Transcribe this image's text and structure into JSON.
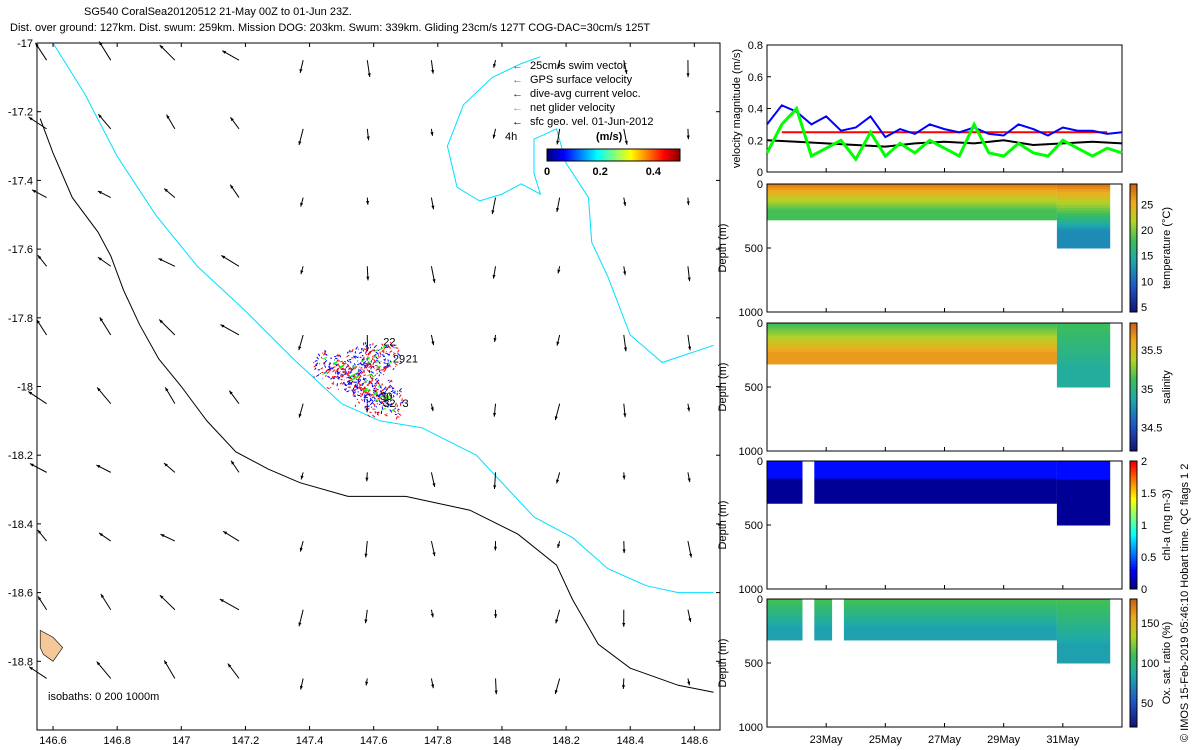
{
  "header": {
    "title": "SG540 CoralSea20120512 21-May 00Z to 01-Jun 23Z.",
    "subtitle": "Dist. over ground: 127km. Dist. swum: 259km. Mission DOG: 203km. Swum: 339km. Gliding 23cm/s 127T COG-DAC=30cm/s 125T"
  },
  "credit": "© IMOS 15-Feb-2019 05:46:10 Hobart time. QC flags 1  2",
  "colors": {
    "swim": "#ff0000",
    "gps": "#ff00ff",
    "dac": "#0000ff",
    "net": "#00ff00",
    "sfc": "#000000",
    "coast": "#000000",
    "iso200": "#000000",
    "iso1000": "#00e0ff",
    "land": "#f5c89a"
  },
  "chart_data": [
    {
      "type": "map",
      "xlim": [
        146.55,
        148.68
      ],
      "ylim": [
        -19.0,
        -17.0
      ],
      "xticks": [
        "146.6",
        "146.8",
        "147",
        "147.2",
        "147.4",
        "147.6",
        "147.8",
        "148",
        "148.2",
        "148.4",
        "148.6"
      ],
      "xtick_values": [
        146.6,
        146.8,
        147.0,
        147.2,
        147.4,
        147.6,
        147.8,
        148.0,
        148.2,
        148.4,
        148.6
      ],
      "yticks": [
        "-17",
        "-17.2",
        "-17.4",
        "-17.6",
        "-17.8",
        "-18",
        "-18.2",
        "-18.4",
        "-18.6",
        "-18.8"
      ],
      "ytick_values": [
        -17.0,
        -17.2,
        -17.4,
        -17.6,
        -17.8,
        -18.0,
        -18.2,
        -18.4,
        -18.6,
        -18.8
      ],
      "legend": [
        {
          "label": "25cm/s swim vector",
          "color": "#ff0000",
          "arrow": "←"
        },
        {
          "label": "GPS surface velocity",
          "color": "#ff00ff",
          "arrow": "←"
        },
        {
          "label": "dive-avg current veloc.",
          "color": "#0000ff",
          "arrow": "←"
        },
        {
          "label": "net glider velocity",
          "color": "#00ff00",
          "arrow": "←"
        },
        {
          "label": "sfc geo. vel. 01-Jun-2012",
          "color": "#000000",
          "arrow": "←"
        }
      ],
      "legend_time": "4h",
      "colorbar": {
        "label": "(m/s)",
        "ticks": [
          "0",
          "0.2",
          "0.4"
        ],
        "tick_values": [
          0,
          0.2,
          0.4
        ],
        "range": [
          0,
          0.5
        ]
      },
      "isobath_note": "isobaths: 0   200  1000m",
      "day_labels": [
        {
          "text": "22",
          "lon": 147.63,
          "lat": -17.88
        },
        {
          "text": "29",
          "lon": 147.66,
          "lat": -17.93
        },
        {
          "text": "21",
          "lon": 147.7,
          "lat": -17.93
        },
        {
          "text": "30",
          "lon": 147.62,
          "lat": -18.04
        },
        {
          "text": "32",
          "lon": 147.63,
          "lat": -18.06
        },
        {
          "text": "3",
          "lon": 147.69,
          "lat": -18.06
        }
      ],
      "coastline_200m": [
        [
          146.56,
          -17.22
        ],
        [
          146.6,
          -17.32
        ],
        [
          146.66,
          -17.45
        ],
        [
          146.74,
          -17.55
        ],
        [
          146.78,
          -17.62
        ],
        [
          146.82,
          -17.72
        ],
        [
          146.87,
          -17.82
        ],
        [
          146.93,
          -17.92
        ],
        [
          147.0,
          -18.0
        ],
        [
          147.08,
          -18.1
        ],
        [
          147.17,
          -18.19
        ],
        [
          147.27,
          -18.24
        ],
        [
          147.37,
          -18.28
        ],
        [
          147.52,
          -18.32
        ],
        [
          147.7,
          -18.32
        ],
        [
          147.9,
          -18.36
        ],
        [
          148.05,
          -18.43
        ],
        [
          148.17,
          -18.52
        ],
        [
          148.22,
          -18.62
        ],
        [
          148.3,
          -18.75
        ],
        [
          148.4,
          -18.82
        ],
        [
          148.55,
          -18.87
        ],
        [
          148.66,
          -18.89
        ]
      ],
      "isobath_1000m": [
        [
          146.6,
          -17.0
        ],
        [
          146.7,
          -17.15
        ],
        [
          146.8,
          -17.33
        ],
        [
          146.92,
          -17.5
        ],
        [
          147.05,
          -17.65
        ],
        [
          147.2,
          -17.78
        ],
        [
          147.35,
          -17.92
        ],
        [
          147.5,
          -18.05
        ],
        [
          147.62,
          -18.1
        ],
        [
          147.75,
          -18.12
        ],
        [
          147.92,
          -18.2
        ],
        [
          148.02,
          -18.3
        ],
        [
          148.1,
          -18.38
        ],
        [
          148.22,
          -18.44
        ],
        [
          148.33,
          -18.53
        ],
        [
          148.45,
          -18.58
        ],
        [
          148.55,
          -18.6
        ],
        [
          148.66,
          -18.6
        ]
      ],
      "isobath_cyan_upper": [
        [
          148.66,
          -17.88
        ],
        [
          148.5,
          -17.93
        ],
        [
          148.4,
          -17.85
        ],
        [
          148.33,
          -17.68
        ],
        [
          148.28,
          -17.58
        ],
        [
          148.27,
          -17.45
        ],
        [
          148.2,
          -17.35
        ],
        [
          148.17,
          -17.25
        ],
        [
          148.1,
          -17.28
        ],
        [
          148.1,
          -17.38
        ],
        [
          148.12,
          -17.44
        ],
        [
          148.06,
          -17.41
        ],
        [
          148.0,
          -17.44
        ],
        [
          147.93,
          -17.46
        ],
        [
          147.86,
          -17.42
        ],
        [
          147.83,
          -17.3
        ],
        [
          147.88,
          -17.18
        ],
        [
          147.97,
          -17.1
        ],
        [
          148.06,
          -17.06
        ],
        [
          148.12,
          -17.04
        ]
      ],
      "sfc_vectors_note": "Gridded surface geostrophic velocity arrows drawn across map"
    },
    {
      "type": "line",
      "ylabel": "velocity magnitude (m/s)",
      "ylim": [
        0,
        0.8
      ],
      "yticks": [
        "0",
        "0.2",
        "0.4",
        "0.6",
        "0.8"
      ],
      "ytick_values": [
        0,
        0.2,
        0.4,
        0.6,
        0.8
      ],
      "x_range_days": [
        21.0,
        33.0
      ],
      "series": [
        {
          "color": "#ff0000",
          "x": [
            21.5,
            32.5
          ],
          "values": [
            0.25,
            0.25
          ]
        },
        {
          "color": "#0000ff",
          "x": [
            21.0,
            21.5,
            22.0,
            22.5,
            23.0,
            23.5,
            24.0,
            24.5,
            25.0,
            25.5,
            26.0,
            26.5,
            27.0,
            27.5,
            28.0,
            28.5,
            29.0,
            29.5,
            30.0,
            30.5,
            31.0,
            31.5,
            32.0,
            32.5,
            33.0
          ],
          "values": [
            0.3,
            0.42,
            0.38,
            0.3,
            0.35,
            0.26,
            0.28,
            0.35,
            0.22,
            0.27,
            0.24,
            0.3,
            0.27,
            0.25,
            0.28,
            0.24,
            0.23,
            0.3,
            0.27,
            0.23,
            0.28,
            0.26,
            0.26,
            0.24,
            0.25
          ]
        },
        {
          "color": "#000000",
          "x": [
            21.0,
            22.0,
            23.0,
            24.0,
            25.0,
            26.0,
            27.0,
            28.0,
            29.0,
            30.0,
            31.0,
            32.0,
            33.0
          ],
          "values": [
            0.2,
            0.19,
            0.18,
            0.17,
            0.16,
            0.18,
            0.19,
            0.18,
            0.2,
            0.17,
            0.18,
            0.19,
            0.18
          ]
        },
        {
          "color": "#00ff00",
          "x": [
            21.0,
            21.5,
            22.0,
            22.5,
            23.0,
            23.5,
            24.0,
            24.5,
            25.0,
            25.5,
            26.0,
            26.5,
            27.0,
            27.5,
            28.0,
            28.5,
            29.0,
            29.5,
            30.0,
            30.5,
            31.0,
            31.5,
            32.0,
            32.5,
            33.0
          ],
          "values": [
            0.12,
            0.3,
            0.4,
            0.1,
            0.15,
            0.2,
            0.08,
            0.25,
            0.1,
            0.18,
            0.12,
            0.2,
            0.15,
            0.1,
            0.3,
            0.12,
            0.1,
            0.18,
            0.12,
            0.1,
            0.2,
            0.15,
            0.1,
            0.15,
            0.12
          ]
        }
      ]
    },
    {
      "type": "heatmap",
      "ylabel": "Depth (m)",
      "yticks": [
        "0",
        "500",
        "1000"
      ],
      "ytick_values": [
        0,
        500,
        1000
      ],
      "cbar_label": "temperature (°C)",
      "cbar_ticks": [
        "5",
        "10",
        "15",
        "20",
        "25"
      ],
      "cbar_values": [
        5,
        10,
        15,
        20,
        25
      ],
      "cbar_range": [
        4,
        29
      ],
      "x_range_days": [
        21.0,
        33.0
      ],
      "surface_value": 27.5,
      "deep_value": 18,
      "base_depth": 210,
      "segments": [
        {
          "start": 21.0,
          "end": 30.8,
          "max_depth": 280
        },
        {
          "start": 30.8,
          "end": 32.6,
          "max_depth": 500,
          "deep_value": 12
        }
      ]
    },
    {
      "type": "heatmap",
      "ylabel": "Depth (m)",
      "yticks": [
        "0",
        "500",
        "1000"
      ],
      "ytick_values": [
        0,
        500,
        1000
      ],
      "cbar_label": "salinity",
      "cbar_ticks": [
        "34.5",
        "35",
        "35.5"
      ],
      "cbar_values": [
        34.5,
        35,
        35.5
      ],
      "cbar_range": [
        34.2,
        35.85
      ],
      "x_range_days": [
        21.0,
        33.0
      ],
      "surface_value": 35.1,
      "deep_value": 35.65,
      "base_depth": 210,
      "segments": [
        {
          "start": 21.0,
          "end": 30.8,
          "max_depth": 320
        },
        {
          "start": 30.8,
          "end": 32.6,
          "max_depth": 500,
          "deep_value": 34.9
        }
      ]
    },
    {
      "type": "heatmap",
      "ylabel": "Depth (m)",
      "yticks": [
        "0",
        "500",
        "1000"
      ],
      "ytick_values": [
        0,
        500,
        1000
      ],
      "cbar_label": "chl-a (mg m-3)",
      "cbar_ticks": [
        "0",
        "0.5",
        "1",
        "1.5",
        "2"
      ],
      "cbar_values": [
        0,
        0.5,
        1,
        1.5,
        2
      ],
      "cbar_range": [
        0,
        2
      ],
      "x_range_days": [
        21.0,
        33.0
      ],
      "surface_value": 0.3,
      "deep_value": 0.05,
      "base_depth": 130,
      "segments": [
        {
          "start": 21.0,
          "end": 22.2,
          "max_depth": 330
        },
        {
          "start": 22.6,
          "end": 30.8,
          "max_depth": 330
        },
        {
          "start": 30.8,
          "end": 32.6,
          "max_depth": 500
        }
      ]
    },
    {
      "type": "heatmap",
      "ylabel": "Depth (m)",
      "yticks": [
        "0",
        "500",
        "1000"
      ],
      "ytick_values": [
        0,
        500,
        1000
      ],
      "cbar_label": "Ox. sat. ratio (%)",
      "cbar_ticks": [
        "50",
        "100",
        "150"
      ],
      "cbar_values": [
        50,
        100,
        150
      ],
      "cbar_range": [
        20,
        180
      ],
      "x_range_days": [
        21.0,
        33.0
      ],
      "xticks": [
        "23May",
        "25May",
        "27May",
        "29May",
        "31May"
      ],
      "xtick_values": [
        23,
        25,
        27,
        29,
        31
      ],
      "surface_value": 110,
      "deep_value": 80,
      "base_depth": 150,
      "segments": [
        {
          "start": 21.0,
          "end": 22.2,
          "max_depth": 320
        },
        {
          "start": 22.6,
          "end": 23.2,
          "max_depth": 320
        },
        {
          "start": 23.6,
          "end": 30.8,
          "max_depth": 320
        },
        {
          "start": 30.8,
          "end": 32.6,
          "max_depth": 500
        }
      ]
    }
  ]
}
